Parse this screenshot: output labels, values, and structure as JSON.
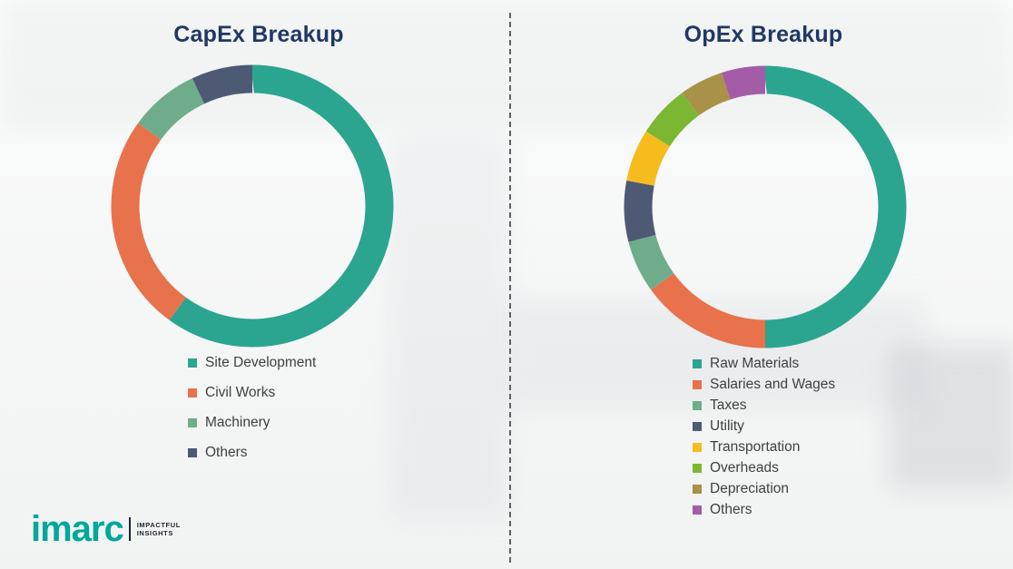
{
  "chart_data": [
    {
      "type": "pie",
      "donut": true,
      "title": "CapEx Breakup",
      "labels": [
        "Site Development",
        "Civil Works",
        "Machinery",
        "Others"
      ],
      "values": [
        60,
        25,
        8,
        7
      ],
      "colors": [
        "#2BA58F",
        "#E8724C",
        "#6FAC8C",
        "#4E5A74"
      ],
      "legend_position": "bottom",
      "data_labels_shown": false
    },
    {
      "type": "pie",
      "donut": true,
      "title": "OpEx Breakup",
      "labels": [
        "Raw Materials",
        "Salaries and Wages",
        "Taxes",
        "Utility",
        "Transportation",
        "Overheads",
        "Depreciation",
        "Others"
      ],
      "values": [
        50,
        15,
        6,
        7,
        6,
        6,
        5,
        5
      ],
      "colors": [
        "#2BA58F",
        "#E8724C",
        "#6FAC8C",
        "#4E5A74",
        "#F6BB1D",
        "#7CB733",
        "#A89148",
        "#A45CA7"
      ],
      "legend_position": "bottom",
      "data_labels_shown": false
    }
  ],
  "branding": {
    "logo_text": "imarc",
    "tagline_line1": "IMPACTFUL",
    "tagline_line2": "INSIGHTS",
    "logo_color": "#00A79B",
    "title_color": "#1F3864"
  }
}
